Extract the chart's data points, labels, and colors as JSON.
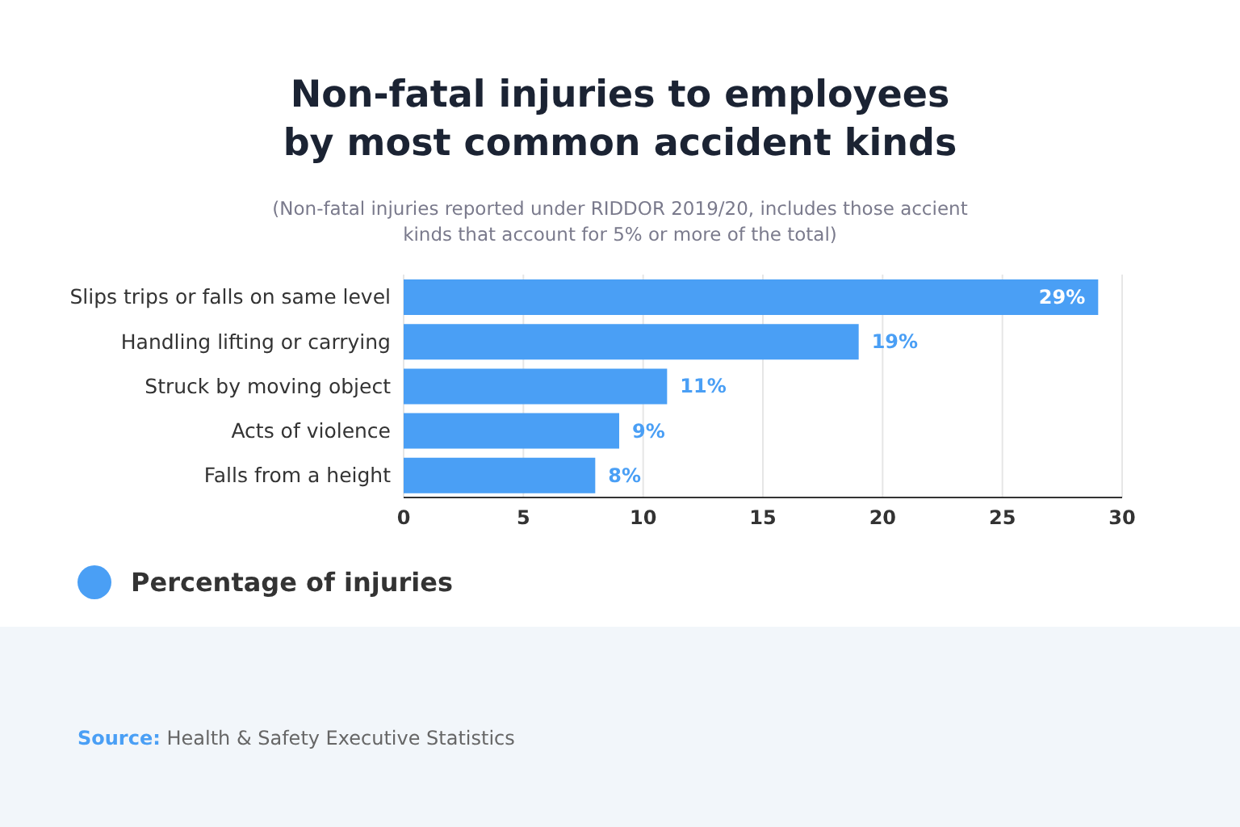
{
  "chart_data": {
    "type": "bar",
    "orientation": "horizontal",
    "title": "Non-fatal injuries to employees\nby most common accident kinds",
    "subtitle": "(Non-fatal injuries reported under RIDDOR 2019/20, includes those accient\nkinds that account for 5% or more of the total)",
    "categories": [
      "Slips trips or falls on same level",
      "Handling lifting or carrying",
      "Struck by moving object",
      "Acts of violence",
      "Falls from a height"
    ],
    "series": [
      {
        "name": "Percentage of injuries",
        "color": "#4a9ff5",
        "values": [
          29,
          19,
          11,
          9,
          8
        ],
        "value_labels": [
          "29%",
          "19%",
          "11%",
          "9%",
          "8%"
        ]
      }
    ],
    "xlim": [
      0,
      30
    ],
    "xticks": [
      0,
      5,
      10,
      15,
      20,
      25,
      30
    ],
    "grid": "x",
    "legend": "bottom left",
    "annotations": [
      "Source: Health & Safety Executive Statistics"
    ]
  }
}
